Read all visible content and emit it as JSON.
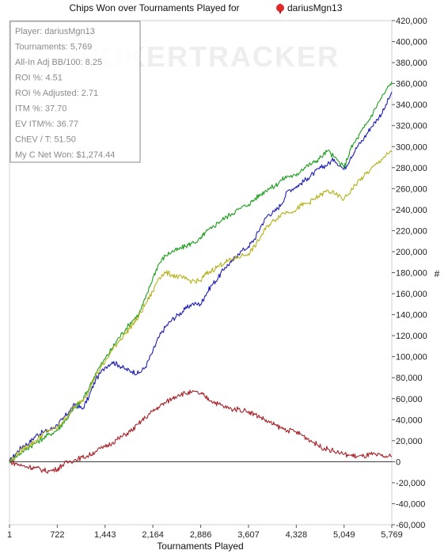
{
  "chart_data": {
    "type": "line",
    "title": "Chips Won over Tournaments Played for",
    "player_name": "dariusMgn13",
    "player_icon": "spade-icon",
    "brand_watermark": "POKERTRACKER",
    "xlabel": "Tournaments Played",
    "ylabel": "#",
    "xlim": [
      1,
      5769
    ],
    "ylim": [
      -60000,
      420000
    ],
    "x_ticks": [
      1,
      722,
      1443,
      2164,
      2886,
      3607,
      4328,
      5049,
      5769
    ],
    "x_tick_labels": [
      "1",
      "722",
      "1,443",
      "2,164",
      "2,886",
      "3,607",
      "4,328",
      "5,049",
      "5,769"
    ],
    "y_ticks": [
      -60000,
      -40000,
      -20000,
      0,
      20000,
      40000,
      60000,
      80000,
      100000,
      120000,
      140000,
      160000,
      180000,
      200000,
      220000,
      240000,
      260000,
      280000,
      300000,
      320000,
      340000,
      360000,
      380000,
      400000,
      420000
    ],
    "y_tick_labels": [
      "-60,000",
      "-40,000",
      "-20,000",
      "0",
      "20,000",
      "40,000",
      "60,000",
      "80,000",
      "100,000",
      "120,000",
      "140,000",
      "160,000",
      "180,000",
      "200,000",
      "220,000",
      "240,000",
      "260,000",
      "280,000",
      "300,000",
      "320,000",
      "340,000",
      "360,000",
      "380,000",
      "400,000",
      "420,000"
    ],
    "grid": false,
    "legend": "none",
    "stats_box": [
      "Player: dariusMgn13",
      "Tournaments: 5,769",
      "All-In Adj BB/100: 8.25",
      "ROI %: 4.51",
      "ROI % Adjusted: 2.71",
      "ITM %: 37.70",
      "EV ITM%: 36.77",
      "ChEV / T: 51.50",
      "My C Net Won: $1,274.44"
    ],
    "series": [
      {
        "color": "#1f1fb4",
        "x": [
          1,
          100,
          200,
          300,
          400,
          500,
          600,
          722,
          800,
          900,
          1000,
          1100,
          1200,
          1300,
          1443,
          1550,
          1650,
          1750,
          1850,
          1950,
          2050,
          2164,
          2250,
          2350,
          2450,
          2550,
          2650,
          2750,
          2886,
          2950,
          3050,
          3150,
          3250,
          3350,
          3450,
          3607,
          3700,
          3800,
          3900,
          4000,
          4100,
          4200,
          4328,
          4400,
          4500,
          4600,
          4700,
          4800,
          4900,
          5049,
          5150,
          5250,
          5350,
          5450,
          5550,
          5650,
          5769
        ],
        "y": [
          0,
          8000,
          15000,
          18000,
          25000,
          28000,
          30000,
          35000,
          40000,
          48000,
          55000,
          50000,
          62000,
          78000,
          90000,
          95000,
          92000,
          88000,
          86000,
          84000,
          90000,
          105000,
          118000,
          128000,
          135000,
          140000,
          145000,
          150000,
          150000,
          158000,
          168000,
          175000,
          185000,
          190000,
          198000,
          205000,
          212000,
          225000,
          235000,
          238000,
          245000,
          258000,
          262000,
          265000,
          270000,
          275000,
          280000,
          283000,
          288000,
          278000,
          290000,
          300000,
          308000,
          318000,
          326000,
          335000,
          352000
        ]
      },
      {
        "color": "#1f9e1f",
        "x": [
          1,
          100,
          200,
          300,
          400,
          500,
          600,
          722,
          800,
          900,
          1000,
          1100,
          1200,
          1300,
          1443,
          1550,
          1650,
          1750,
          1850,
          1950,
          2050,
          2164,
          2250,
          2350,
          2450,
          2550,
          2650,
          2750,
          2886,
          2950,
          3050,
          3150,
          3250,
          3350,
          3450,
          3607,
          3700,
          3800,
          3900,
          4000,
          4100,
          4200,
          4328,
          4400,
          4500,
          4600,
          4700,
          4800,
          4900,
          5049,
          5150,
          5250,
          5350,
          5450,
          5550,
          5650,
          5769
        ],
        "y": [
          0,
          5000,
          10000,
          14000,
          18000,
          22000,
          26000,
          30000,
          36000,
          44000,
          52000,
          58000,
          70000,
          84000,
          98000,
          108000,
          118000,
          126000,
          134000,
          140000,
          155000,
          175000,
          188000,
          196000,
          200000,
          202000,
          205000,
          208000,
          212000,
          218000,
          222000,
          228000,
          232000,
          236000,
          240000,
          245000,
          250000,
          255000,
          260000,
          262000,
          268000,
          272000,
          272000,
          278000,
          282000,
          285000,
          290000,
          296000,
          290000,
          280000,
          298000,
          308000,
          318000,
          328000,
          340000,
          350000,
          362000
        ]
      },
      {
        "color": "#b5b21c",
        "x": [
          1,
          100,
          200,
          300,
          400,
          500,
          600,
          722,
          800,
          900,
          1000,
          1100,
          1200,
          1300,
          1443,
          1550,
          1650,
          1750,
          1850,
          1950,
          2050,
          2164,
          2250,
          2350,
          2450,
          2550,
          2650,
          2750,
          2886,
          2950,
          3050,
          3150,
          3250,
          3350,
          3450,
          3607,
          3700,
          3800,
          3900,
          4000,
          4100,
          4200,
          4328,
          4400,
          4500,
          4600,
          4700,
          4800,
          4900,
          5049,
          5150,
          5250,
          5350,
          5450,
          5550,
          5650,
          5769
        ],
        "y": [
          0,
          6000,
          12000,
          16000,
          20000,
          26000,
          30000,
          32000,
          38000,
          46000,
          54000,
          58000,
          68000,
          82000,
          95000,
          106000,
          115000,
          122000,
          130000,
          138000,
          150000,
          162000,
          175000,
          180000,
          178000,
          176000,
          174000,
          172000,
          172000,
          178000,
          182000,
          186000,
          190000,
          192000,
          195000,
          198000,
          205000,
          215000,
          225000,
          230000,
          236000,
          238000,
          240000,
          244000,
          246000,
          250000,
          254000,
          258000,
          255000,
          250000,
          258000,
          266000,
          272000,
          278000,
          284000,
          290000,
          295000
        ]
      },
      {
        "color": "#a8232a",
        "x": [
          1,
          100,
          200,
          300,
          400,
          500,
          600,
          722,
          800,
          900,
          1000,
          1100,
          1200,
          1300,
          1443,
          1550,
          1650,
          1750,
          1850,
          1950,
          2050,
          2164,
          2250,
          2350,
          2450,
          2550,
          2650,
          2750,
          2886,
          2950,
          3050,
          3150,
          3250,
          3350,
          3450,
          3607,
          3700,
          3800,
          3900,
          4000,
          4100,
          4200,
          4328,
          4400,
          4500,
          4600,
          4700,
          4800,
          4900,
          5049,
          5150,
          5250,
          5350,
          5450,
          5550,
          5650,
          5769
        ],
        "y": [
          0,
          -2000,
          -4000,
          -5000,
          -6000,
          -8000,
          -9000,
          -7000,
          -3000,
          0,
          2000,
          4000,
          6000,
          10000,
          14000,
          18000,
          22000,
          26000,
          30000,
          36000,
          42000,
          48000,
          52000,
          56000,
          60000,
          64000,
          65000,
          66000,
          65000,
          62000,
          58000,
          55000,
          52000,
          50000,
          50000,
          48000,
          45000,
          42000,
          38000,
          35000,
          32000,
          30000,
          28000,
          26000,
          22000,
          18000,
          14000,
          12000,
          10000,
          7000,
          6000,
          5000,
          5000,
          7000,
          6000,
          5000,
          5000
        ]
      }
    ]
  }
}
